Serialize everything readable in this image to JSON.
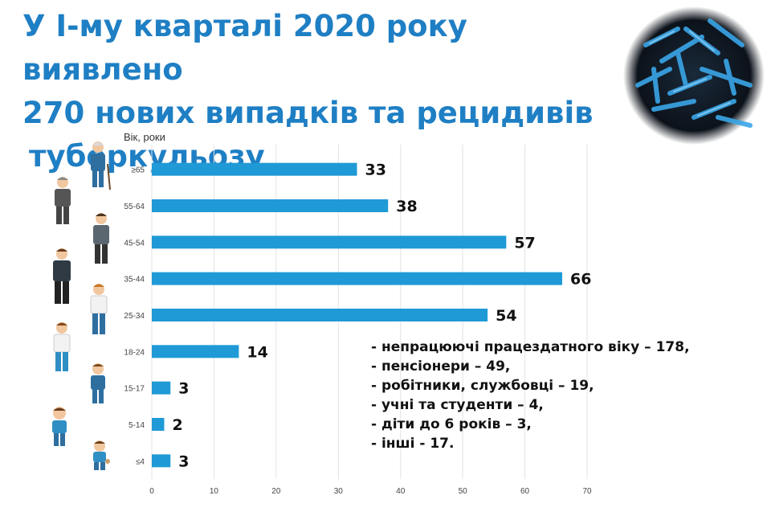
{
  "title": {
    "line1": "У І-му кварталі 2020 року виявлено",
    "line2": "270 нових випадків та рецидивів",
    "line3": "туберкульозу"
  },
  "chart_data": {
    "type": "bar",
    "orientation": "horizontal",
    "categories": [
      "≥65",
      "55-64",
      "45-54",
      "35-44",
      "25-34",
      "18-24",
      "15-17",
      "5-14",
      "≤4"
    ],
    "values": [
      33,
      38,
      57,
      66,
      54,
      14,
      3,
      2,
      3
    ],
    "ylabel": "Вік, роки",
    "xlabel": "",
    "xlim": [
      0,
      70
    ],
    "xticks": [
      0,
      10,
      20,
      30,
      40,
      50,
      60,
      70
    ],
    "grid": true,
    "bar_color": "#1f9ad6"
  },
  "notes": [
    "- непрацюючі працездатного віку – 178,",
    "- пенсіонери – 49,",
    "- робітники, службовці – 19,",
    "- учні та студенти – 4,",
    "- діти до 6 років – 3,",
    "- інші - 17."
  ],
  "colors": {
    "title": "#1f7fc4",
    "bar": "#1f9ad6",
    "grid": "#e3e3e3"
  }
}
